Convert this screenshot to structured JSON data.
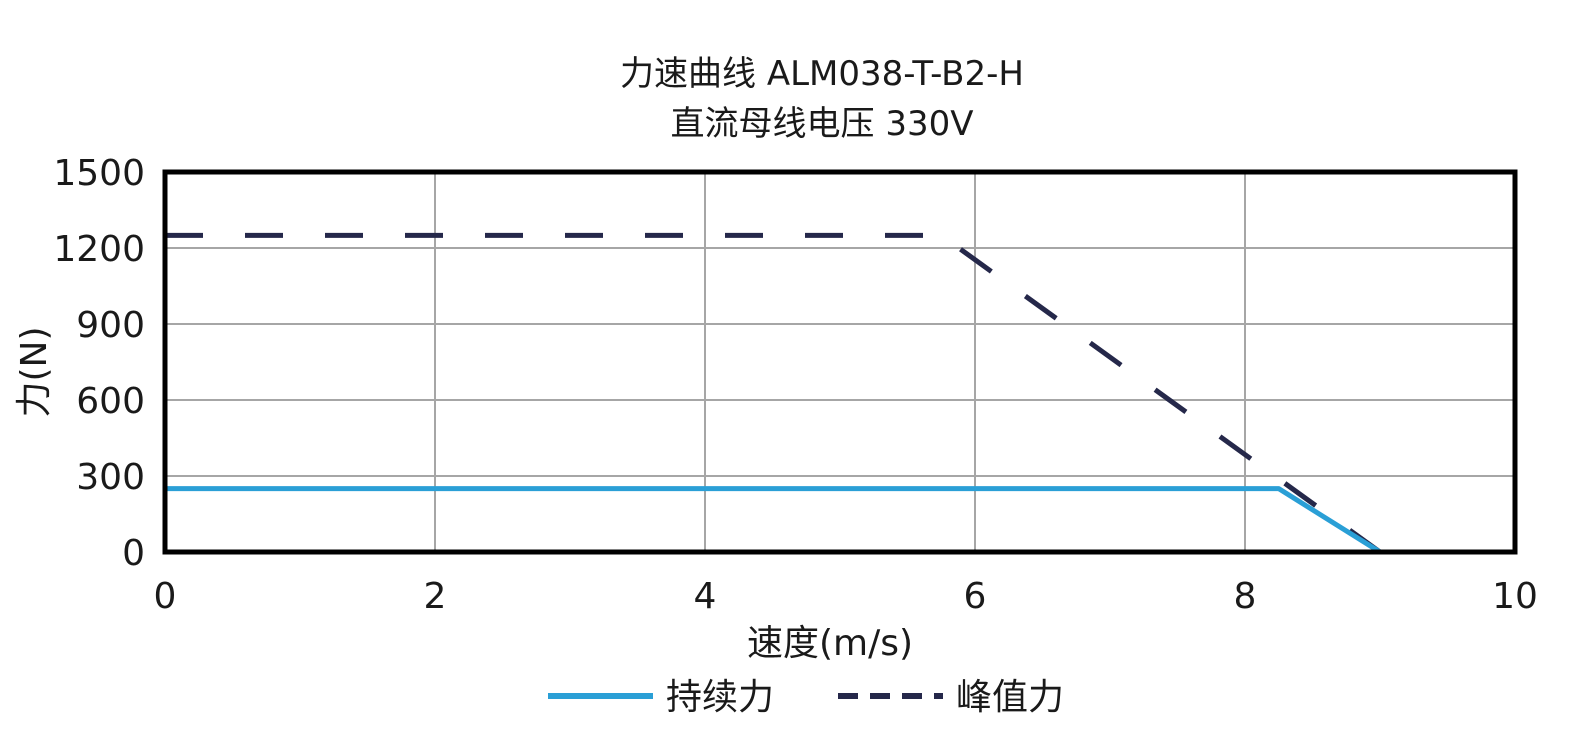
{
  "chart_data": {
    "type": "line",
    "title": "力速曲线 ALM038-T-B2-H",
    "subtitle": "直流母线电压 330V",
    "xlabel": "速度(m/s)",
    "ylabel": "力(N)",
    "xlim": [
      0,
      10
    ],
    "ylim": [
      0,
      1500
    ],
    "xticks": [
      0,
      2,
      4,
      6,
      8,
      10
    ],
    "yticks": [
      0,
      300,
      600,
      900,
      1200,
      1500
    ],
    "xtick_labels": [
      "0",
      "2",
      "4",
      "6",
      "8",
      "10"
    ],
    "ytick_labels": [
      "0",
      "300",
      "600",
      "900",
      "1200",
      "1500"
    ],
    "grid": true,
    "legend_position": "bottom",
    "series": [
      {
        "name": "持续力",
        "color": "#2a9fd6",
        "style": "solid",
        "points": [
          [
            0,
            250
          ],
          [
            8.25,
            250
          ],
          [
            9.0,
            0
          ]
        ]
      },
      {
        "name": "峰值力",
        "color": "#25284a",
        "style": "dashed",
        "points": [
          [
            0,
            1250
          ],
          [
            5.75,
            1250
          ],
          [
            9.0,
            0
          ]
        ]
      }
    ]
  }
}
